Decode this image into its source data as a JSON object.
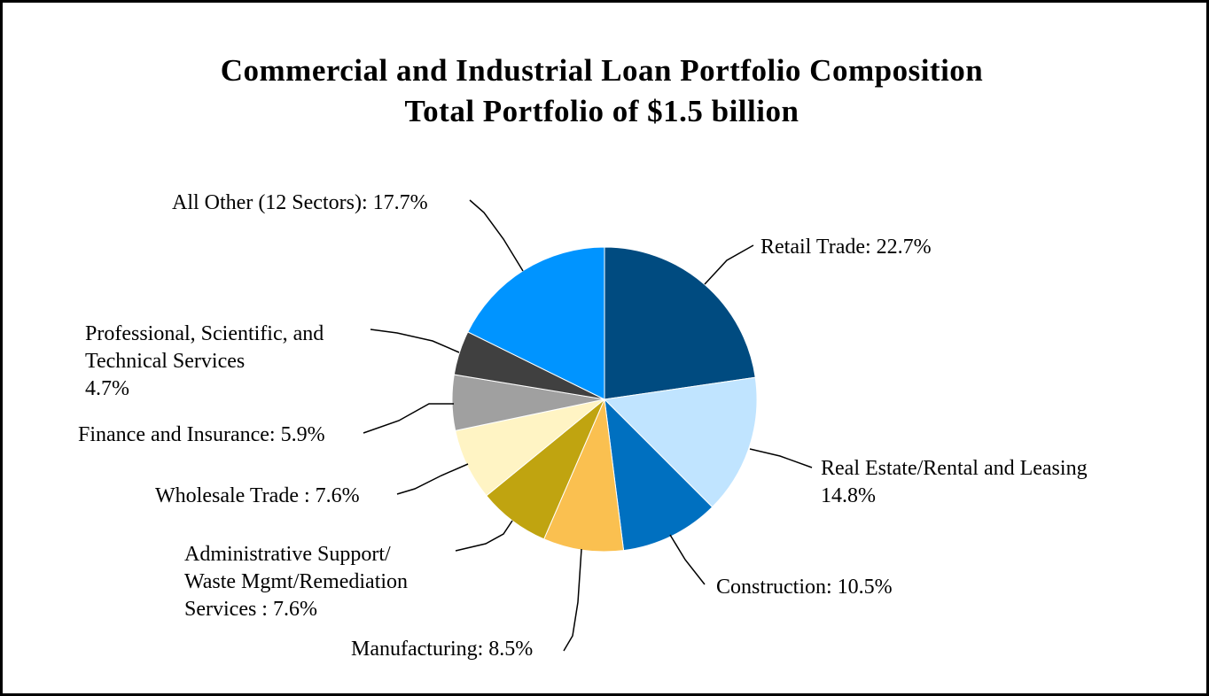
{
  "chart_data": {
    "type": "pie",
    "title": "Commercial and Industrial Loan Portfolio Composition",
    "subtitle": "Total Portfolio of $1.5 billion",
    "slices": [
      {
        "label_lines": [
          "Retail Trade: 22.7%"
        ],
        "value": 22.7,
        "color": "#004b80"
      },
      {
        "label_lines": [
          "Real Estate/Rental and Leasing",
          "14.8%"
        ],
        "value": 14.8,
        "color": "#c0e4ff"
      },
      {
        "label_lines": [
          "Construction: 10.5%"
        ],
        "value": 10.5,
        "color": "#0070c0"
      },
      {
        "label_lines": [
          "Manufacturing: 8.5%"
        ],
        "value": 8.5,
        "color": "#fac050"
      },
      {
        "label_lines": [
          "Administrative Support/",
          "Waste Mgmt/Remediation",
          "Services : 7.6%"
        ],
        "value": 7.6,
        "color": "#c0a410"
      },
      {
        "label_lines": [
          "Wholesale Trade : 7.6%"
        ],
        "value": 7.6,
        "color": "#fff4c4"
      },
      {
        "label_lines": [
          "Finance and Insurance: 5.9%"
        ],
        "value": 5.9,
        "color": "#a0a0a0"
      },
      {
        "label_lines": [
          "Professional, Scientific, and",
          "Technical Services",
          "4.7%"
        ],
        "value": 4.7,
        "color": "#404040"
      },
      {
        "label_lines": [
          "All Other (12 Sectors): 17.7%"
        ],
        "value": 17.7,
        "color": "#0094ff"
      }
    ],
    "start_angle": "12 o'clock",
    "direction": "clockwise",
    "legend": "none"
  }
}
